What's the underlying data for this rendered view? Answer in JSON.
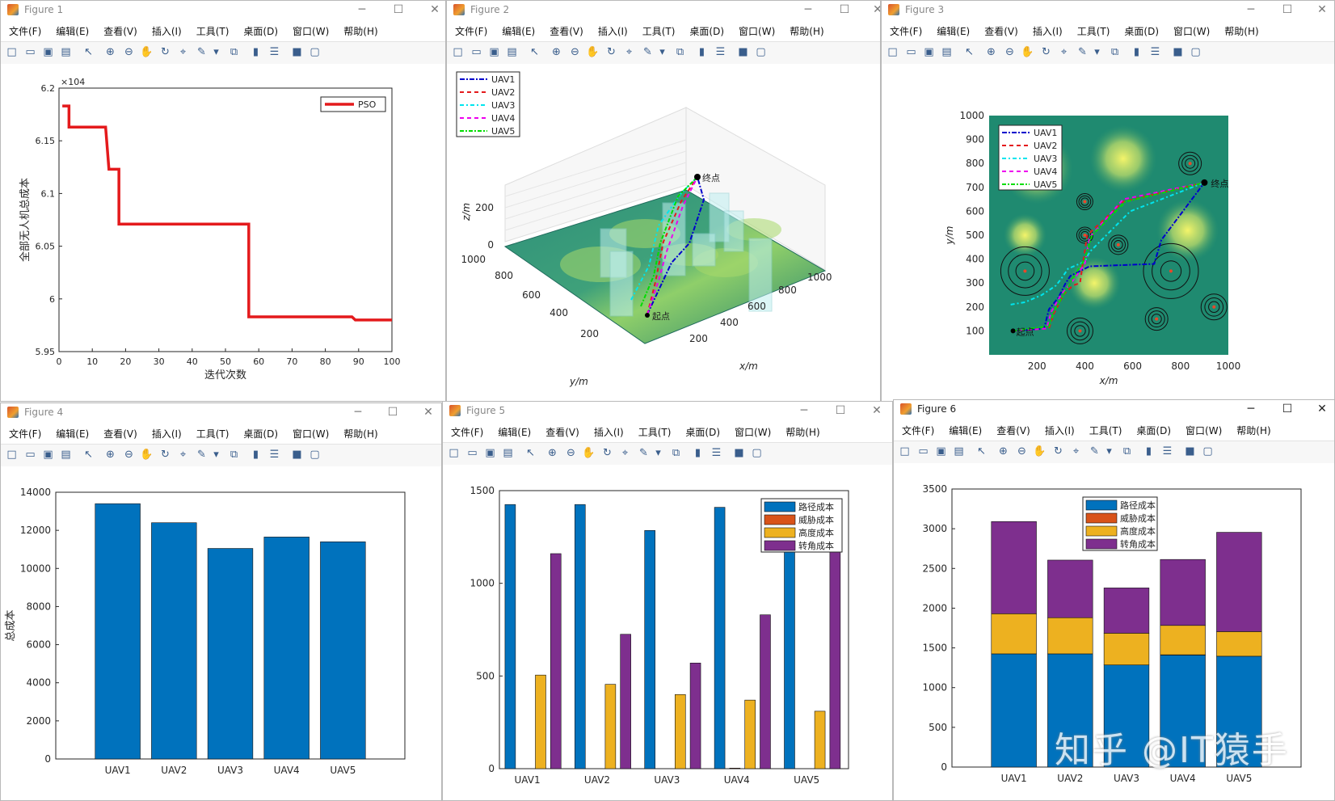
{
  "menu": [
    "文件(F)",
    "编辑(E)",
    "查看(V)",
    "插入(I)",
    "工具(T)",
    "桌面(D)",
    "窗口(W)",
    "帮助(H)"
  ],
  "toolbar_icons": [
    "new-file-icon",
    "open-folder-icon",
    "save-icon",
    "print-icon",
    "pointer-icon",
    "zoom-in-icon",
    "zoom-out-icon",
    "pan-hand-icon",
    "rotate-3d-icon",
    "data-cursor-icon",
    "brush-icon",
    "dropdown-arrow-icon",
    "link-plot-icon",
    "colorbar-icon",
    "legend-icon",
    "hide-tools-icon",
    "dock-icon"
  ],
  "window_controls": {
    "minimize": "─",
    "maximize": "☐",
    "close": "✕"
  },
  "figures": [
    {
      "title": "Figure 1"
    },
    {
      "title": "Figure 2"
    },
    {
      "title": "Figure 3"
    },
    {
      "title": "Figure 4"
    },
    {
      "title": "Figure 5"
    },
    {
      "title": "Figure 6"
    }
  ],
  "watermark": "知乎 @IT猿手",
  "chart_data": [
    {
      "type": "line",
      "figure": "Figure 1",
      "xlabel": "迭代次数",
      "ylabel": "全部无人机总成本",
      "yexponent": "×10^4",
      "xlim": [
        0,
        100
      ],
      "ylim": [
        5.95,
        6.2
      ],
      "xticks": [
        0,
        10,
        20,
        30,
        40,
        50,
        60,
        70,
        80,
        90,
        100
      ],
      "yticks": [
        5.95,
        6,
        6.05,
        6.1,
        6.15,
        6.2
      ],
      "series": [
        {
          "name": "PSO",
          "color": "#e41a1c",
          "x": [
            1,
            3,
            3,
            14,
            15,
            15,
            17,
            18,
            18,
            56,
            57,
            57,
            88,
            89,
            89,
            100
          ],
          "y": [
            6.183,
            6.183,
            6.163,
            6.163,
            6.123,
            6.123,
            6.123,
            6.123,
            6.071,
            6.071,
            6.071,
            5.983,
            5.983,
            5.98,
            5.98,
            5.98
          ]
        }
      ],
      "legend": "top-right"
    },
    {
      "type": "line",
      "figure": "Figure 2",
      "projection": "3d",
      "xlabel": "x/m",
      "ylabel": "y/m",
      "zlabel": "z/m",
      "xticks": [
        200,
        400,
        600,
        800,
        1000
      ],
      "yticks": [
        200,
        400,
        600,
        800,
        1000
      ],
      "zticks": [
        0,
        200
      ],
      "annotations": [
        "起点",
        "终点"
      ],
      "series": [
        {
          "name": "UAV1",
          "color": "#0000cc"
        },
        {
          "name": "UAV2",
          "color": "#e41a1c"
        },
        {
          "name": "UAV3",
          "color": "#00e5ee"
        },
        {
          "name": "UAV4",
          "color": "#ee00ee"
        },
        {
          "name": "UAV5",
          "color": "#00dd00"
        }
      ],
      "legend": "top-left"
    },
    {
      "type": "line",
      "figure": "Figure 3",
      "xlabel": "x/m",
      "ylabel": "y/m",
      "xlim": [
        0,
        1000
      ],
      "ylim": [
        0,
        1000
      ],
      "xticks": [
        200,
        400,
        600,
        800,
        1000
      ],
      "yticks": [
        100,
        200,
        300,
        400,
        500,
        600,
        700,
        800,
        900,
        1000
      ],
      "annotations": [
        "起点",
        "终点"
      ],
      "start": [
        100,
        100
      ],
      "end": [
        900,
        720
      ],
      "series": [
        {
          "name": "UAV1",
          "color": "#0000cc",
          "x": [
            100,
            230,
            250,
            290,
            320,
            340,
            420,
            690,
            720,
            900
          ],
          "y": [
            100,
            110,
            190,
            240,
            300,
            330,
            370,
            380,
            480,
            720
          ]
        },
        {
          "name": "UAV2",
          "color": "#e41a1c",
          "x": [
            100,
            250,
            270,
            310,
            350,
            380,
            390,
            410,
            560,
            900
          ],
          "y": [
            100,
            110,
            170,
            250,
            290,
            300,
            370,
            500,
            640,
            720
          ]
        },
        {
          "name": "UAV3",
          "color": "#00e5ee",
          "x": [
            90,
            150,
            220,
            280,
            310,
            330,
            400,
            420,
            590,
            900
          ],
          "y": [
            210,
            220,
            250,
            290,
            330,
            360,
            390,
            430,
            600,
            720
          ]
        },
        {
          "name": "UAV4",
          "color": "#ee00ee",
          "x": [
            100,
            240,
            260,
            300,
            340,
            350,
            400,
            420,
            560,
            900
          ],
          "y": [
            100,
            110,
            180,
            250,
            300,
            310,
            380,
            490,
            650,
            720
          ]
        },
        {
          "name": "UAV5",
          "color": "#00dd00",
          "x": [
            100,
            250,
            270,
            310,
            340,
            350,
            400,
            430,
            570,
            900
          ],
          "y": [
            100,
            120,
            180,
            250,
            300,
            320,
            400,
            500,
            640,
            720
          ]
        }
      ],
      "threats": [
        [
          150,
          350
        ],
        [
          400,
          640
        ],
        [
          400,
          500
        ],
        [
          540,
          460
        ],
        [
          840,
          800
        ],
        [
          760,
          350
        ],
        [
          940,
          200
        ],
        [
          700,
          150
        ],
        [
          380,
          100
        ]
      ],
      "legend": "top-left"
    },
    {
      "type": "bar",
      "figure": "Figure 4",
      "ylabel": "总成本",
      "categories": [
        "UAV1",
        "UAV2",
        "UAV3",
        "UAV4",
        "UAV5"
      ],
      "values": [
        13400,
        12400,
        11050,
        11650,
        11400
      ],
      "ylim": [
        0,
        14000
      ],
      "yticks": [
        0,
        2000,
        4000,
        6000,
        8000,
        10000,
        12000,
        14000
      ],
      "color": "#0072bd"
    },
    {
      "type": "bar",
      "figure": "Figure 5",
      "categories": [
        "UAV1",
        "UAV2",
        "UAV3",
        "UAV4",
        "UAV5"
      ],
      "ylim": [
        0,
        1500
      ],
      "yticks": [
        0,
        500,
        1000,
        1500
      ],
      "series": [
        {
          "name": "路径成本",
          "color": "#0072bd",
          "values": [
            1425,
            1425,
            1285,
            1410,
            1395
          ]
        },
        {
          "name": "威胁成本",
          "color": "#d95319",
          "values": [
            0,
            0,
            0,
            3,
            0
          ]
        },
        {
          "name": "高度成本",
          "color": "#edb120",
          "values": [
            505,
            455,
            400,
            370,
            310
          ]
        },
        {
          "name": "转角成本",
          "color": "#7e2f8e",
          "values": [
            1160,
            725,
            570,
            830,
            1250
          ]
        }
      ],
      "legend": "top-right"
    },
    {
      "type": "bar",
      "stacked": true,
      "figure": "Figure 6",
      "categories": [
        "UAV1",
        "UAV2",
        "UAV3",
        "UAV4",
        "UAV5"
      ],
      "ylim": [
        0,
        3500
      ],
      "yticks": [
        0,
        500,
        1000,
        1500,
        2000,
        2500,
        3000,
        3500
      ],
      "series": [
        {
          "name": "路径成本",
          "color": "#0072bd",
          "values": [
            1425,
            1425,
            1285,
            1410,
            1395
          ]
        },
        {
          "name": "威胁成本",
          "color": "#d95319",
          "values": [
            0,
            0,
            0,
            3,
            0
          ]
        },
        {
          "name": "高度成本",
          "color": "#edb120",
          "values": [
            505,
            455,
            400,
            370,
            310
          ]
        },
        {
          "name": "转角成本",
          "color": "#7e2f8e",
          "values": [
            1160,
            725,
            570,
            830,
            1250
          ]
        }
      ],
      "legend": "top-center"
    }
  ]
}
